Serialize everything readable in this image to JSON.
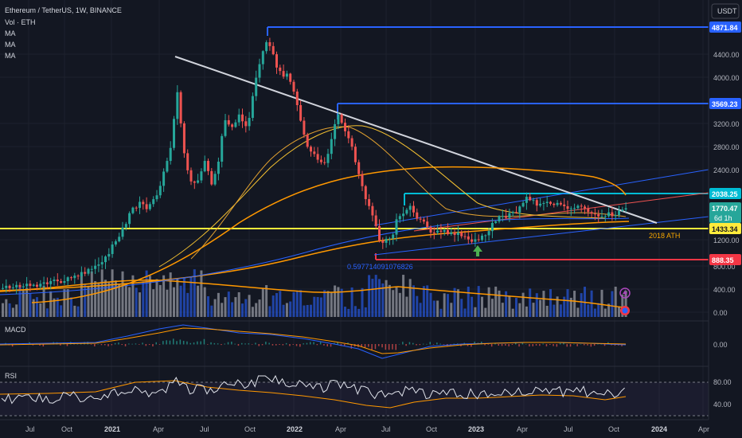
{
  "header": {
    "symbol": "Ethereum / TetherUS, 1W, BINANCE",
    "legend": [
      "Vol · ETH",
      "MA",
      "MA",
      "MA"
    ],
    "currency": "USDT"
  },
  "colors": {
    "background": "#131722",
    "up": "#26a69a",
    "down": "#ef5350",
    "blue_level": "#2962ff",
    "cyan_level": "#00bcd4",
    "yellow_level": "#ffeb3b",
    "red_level": "#f23645",
    "ma_orange": "#ff9800",
    "ma_yellow": "#f7c331",
    "trend_white": "#d1d4dc"
  },
  "price_axis": {
    "labels": [
      "4400.00",
      "4000.00",
      "3200.00",
      "2800.00",
      "2400.00",
      "1200.00",
      "800.00",
      "400.00",
      "0.00"
    ]
  },
  "price_tags": [
    {
      "name": "level-4871",
      "value": "4871.84",
      "color": "#2962ff"
    },
    {
      "name": "level-3569",
      "value": "3569.23",
      "color": "#2962ff"
    },
    {
      "name": "level-2038",
      "value": "2038.25",
      "color": "#00bcd4"
    },
    {
      "name": "current-price",
      "value": "1770.47",
      "sub": "6d 1h",
      "color": "#26a69a"
    },
    {
      "name": "level-1433",
      "value": "1433.34",
      "color": "#ffeb3b"
    },
    {
      "name": "level-888",
      "value": "888.35",
      "color": "#f23645"
    }
  ],
  "annotations": {
    "ath_2018": "2018 ATH",
    "fib": "0.597714091076826"
  },
  "macd": {
    "label": "MACD",
    "axis": [
      "0.00"
    ]
  },
  "rsi": {
    "label": "RSI",
    "axis": [
      "80.00",
      "40.00"
    ]
  },
  "time_axis": [
    "Jul",
    "Oct",
    "2021",
    "Apr",
    "Jul",
    "Oct",
    "2022",
    "Apr",
    "Jul",
    "Oct",
    "2023",
    "Apr",
    "Jul",
    "Oct",
    "2024",
    "Apr"
  ]
}
